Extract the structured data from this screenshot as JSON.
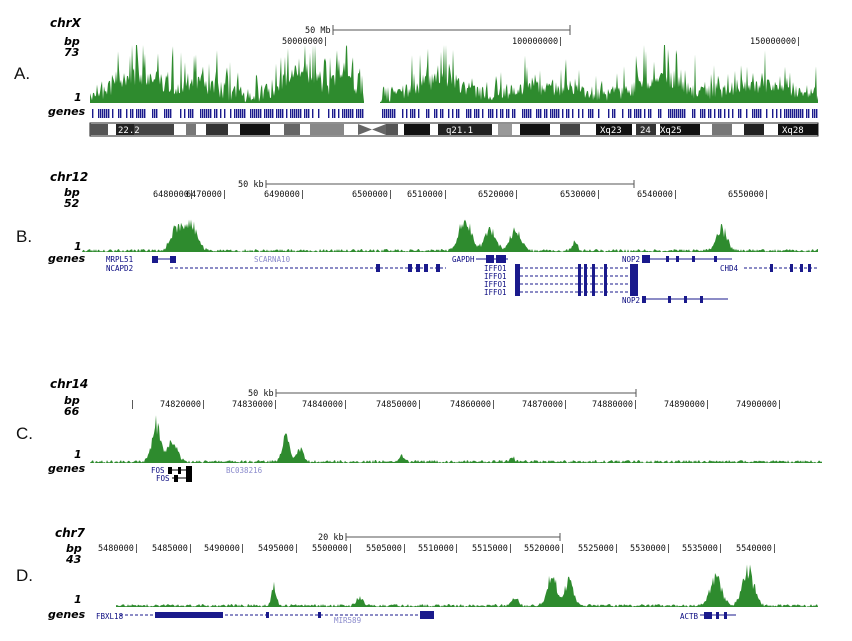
{
  "panels": [
    {
      "letter": "A.",
      "chrom": "chrX",
      "bp_label": "bp",
      "ymax": "73",
      "ymin": "1",
      "genes_label": "genes",
      "scale_text": "50 Mb",
      "coord_ticks": [
        "50000000|",
        "100000000|",
        "150000000|"
      ],
      "band_labels": [
        "22.2",
        "q21.1",
        "Xq23",
        "24",
        "Xq25",
        "Xq28"
      ],
      "signal_color": "#2e8b2e",
      "gene_color": "#1a1a8c"
    },
    {
      "letter": "B.",
      "chrom": "chr12",
      "bp_label": "bp",
      "ymax": "52",
      "ymin": "1",
      "genes_label": "genes",
      "scale_text": "50 kb",
      "coord_ticks": [
        "6470000|",
        "6480000|",
        "6490000|",
        "6500000|",
        "6510000|",
        "6520000|",
        "6530000|",
        "6540000|",
        "6550000|"
      ],
      "gene_names": [
        "MRPL51",
        "NCAPD2",
        "SCARNA10",
        "GAPDH",
        "IFFO1",
        "IFFO1",
        "IFFO1",
        "IFFO1",
        "NOP2",
        "NOP2",
        "CHD4"
      ]
    },
    {
      "letter": "C.",
      "chrom": "chr14",
      "bp_label": "bp",
      "ymax": "66",
      "ymin": "1",
      "genes_label": "genes",
      "scale_text": "50 kb",
      "coord_ticks": [
        "74820000|",
        "74830000|",
        "74840000|",
        "74850000|",
        "74860000|",
        "74870000|",
        "74880000|",
        "74890000|",
        "74900000|"
      ],
      "gene_names": [
        "FOS",
        "FOS",
        "BC038216"
      ]
    },
    {
      "letter": "D.",
      "chrom": "chr7",
      "bp_label": "bp",
      "ymax": "43",
      "ymin": "1",
      "genes_label": "genes",
      "scale_text": "20 kb",
      "coord_ticks": [
        "5480000|",
        "5485000|",
        "5490000|",
        "5495000|",
        "5500000|",
        "5505000|",
        "5510000|",
        "5515000|",
        "5520000|",
        "5525000|",
        "5530000|",
        "5535000|",
        "5540000|"
      ],
      "gene_names": [
        "FBXL18",
        "MIR589",
        "ACTB"
      ]
    }
  ]
}
